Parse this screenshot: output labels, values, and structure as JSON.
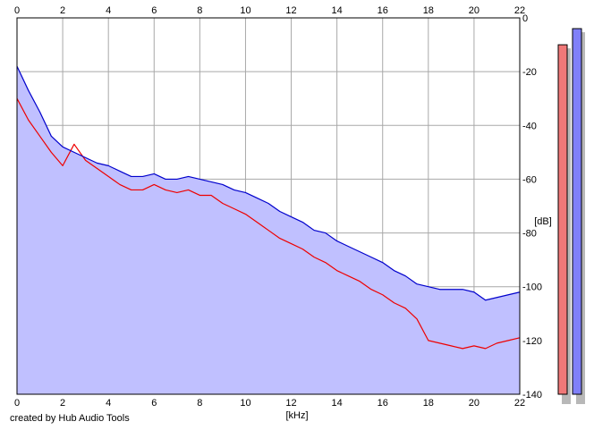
{
  "chart_data": {
    "type": "area",
    "xlabel": "[kHz]",
    "ylabel": "[dB]",
    "x_ticks": [
      "0",
      "2",
      "4",
      "6",
      "8",
      "10",
      "12",
      "14",
      "16",
      "18",
      "20",
      "22"
    ],
    "y_ticks": [
      "0",
      "-20",
      "-40",
      "-60",
      "-80",
      "-100",
      "-120",
      "-140"
    ],
    "xlim": [
      0,
      22
    ],
    "ylim": [
      -140,
      0
    ],
    "grid": true,
    "x": [
      0,
      0.5,
      1,
      1.5,
      2,
      2.5,
      3,
      3.5,
      4,
      4.5,
      5,
      5.5,
      6,
      6.5,
      7,
      7.5,
      8,
      8.5,
      9,
      9.5,
      10,
      10.5,
      11,
      11.5,
      12,
      12.5,
      13,
      13.5,
      14,
      14.5,
      15,
      15.5,
      16,
      16.5,
      17,
      17.5,
      18,
      18.5,
      19,
      19.5,
      20,
      20.5,
      21,
      21.5,
      22
    ],
    "series": [
      {
        "color": "#0000cc",
        "values": [
          -18,
          -27,
          -35,
          -44,
          -48,
          -50,
          -52,
          -54,
          -55,
          -57,
          -59,
          -59,
          -58,
          -60,
          -60,
          -59,
          -60,
          -61,
          -62,
          -64,
          -65,
          -67,
          -69,
          -72,
          -74,
          -76,
          -79,
          -80,
          -83,
          -85,
          -87,
          -89,
          -91,
          -94,
          -96,
          -99,
          -100,
          -101,
          -101,
          -101,
          -102,
          -105,
          -104,
          -103,
          -102
        ]
      },
      {
        "color": "#ee0000",
        "values": [
          -30,
          -38,
          -44,
          -50,
          -55,
          -47,
          -53,
          -56,
          -59,
          -62,
          -64,
          -64,
          -62,
          -64,
          -65,
          -64,
          -66,
          -66,
          -69,
          -71,
          -73,
          -76,
          -79,
          -82,
          -84,
          -86,
          -89,
          -91,
          -94,
          -96,
          -98,
          -101,
          -103,
          -106,
          -108,
          -112,
          -120,
          -121,
          -122,
          -123,
          -122,
          -123,
          -121,
          -120,
          -119
        ]
      }
    ],
    "fill_color": "#c0c0ff",
    "level_meters": [
      {
        "color": "#f07878",
        "level_db": -10
      },
      {
        "color": "#8080f8",
        "level_db": -4
      }
    ]
  },
  "footer": {
    "credit": "created by Hub Audio Tools"
  }
}
